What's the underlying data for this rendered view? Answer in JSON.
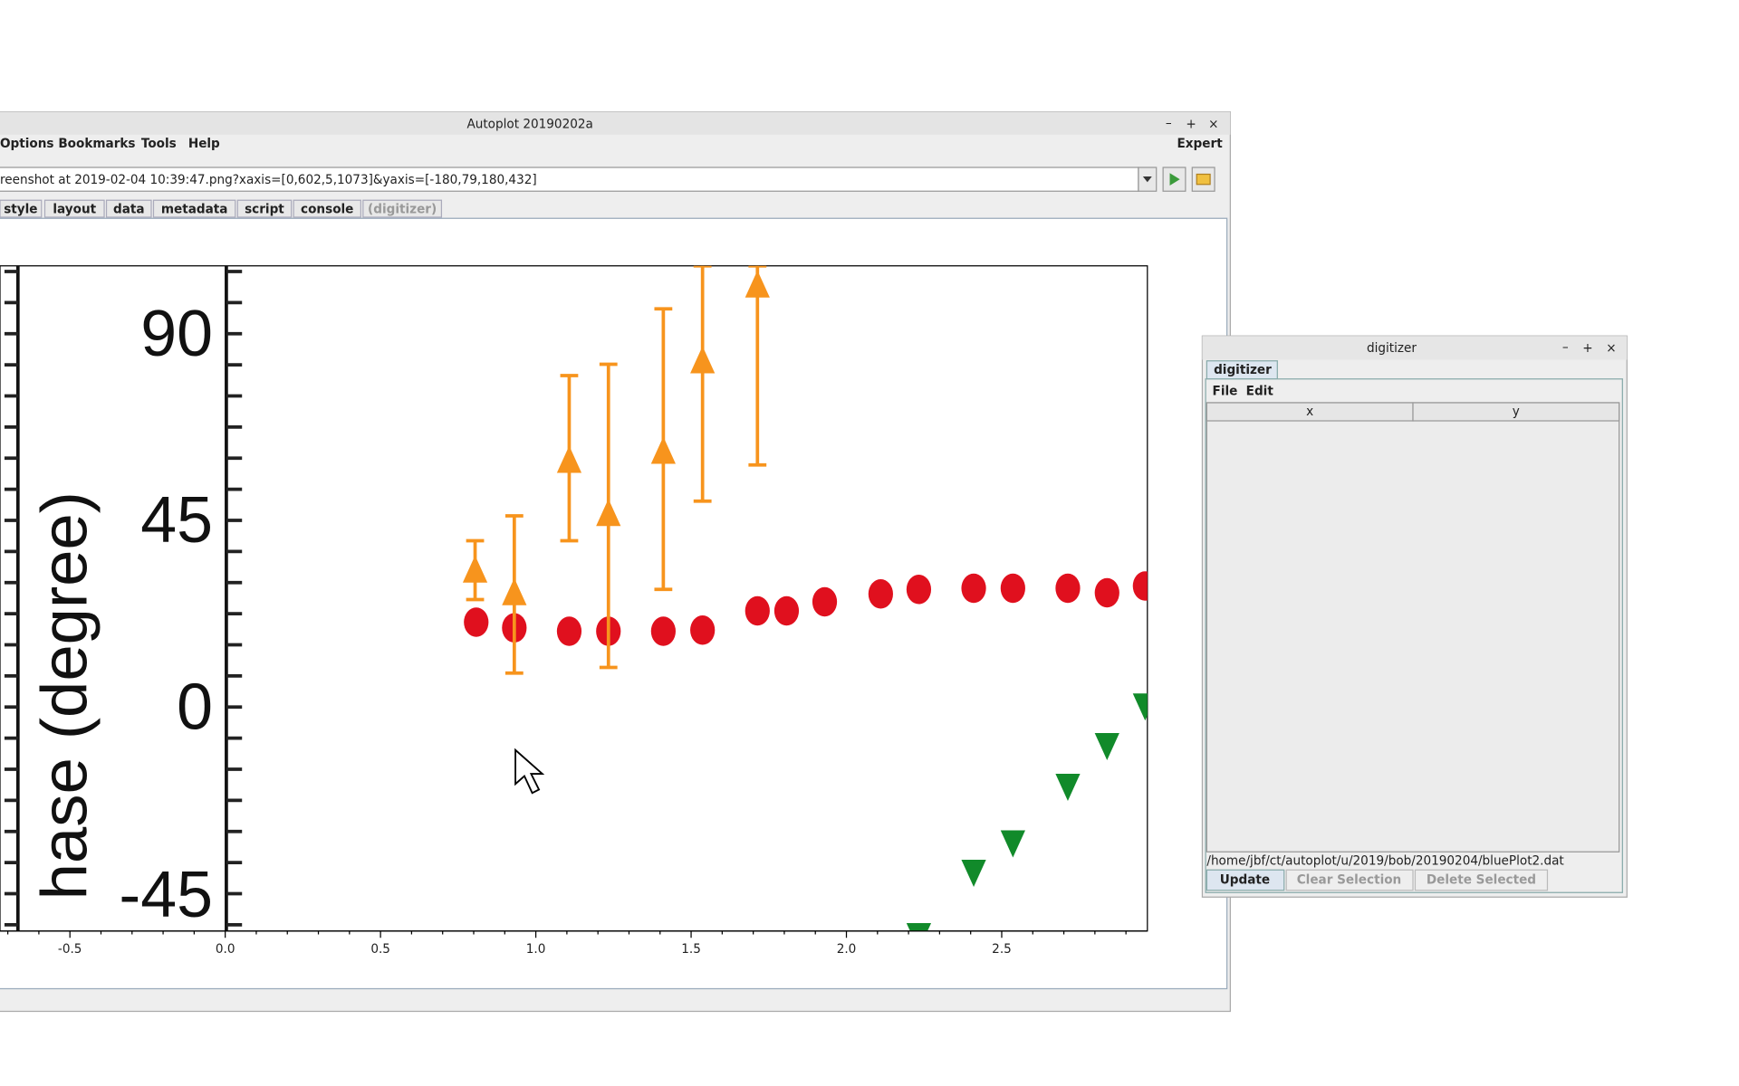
{
  "window": {
    "title": "Autoplot 20190202a",
    "menu": [
      "Options",
      "Bookmarks",
      "Tools",
      "Help"
    ],
    "expert": "Expert",
    "url": "reenshot at 2019-02-04 10:39:47.png?xaxis=[0,602,5,1073]&yaxis=[-180,79,180,432]",
    "tabs": [
      "style",
      "layout",
      "data",
      "metadata",
      "script",
      "console",
      "(digitizer)"
    ]
  },
  "plot": {
    "y_labels": [
      "90",
      "45",
      "0",
      "-45"
    ],
    "y_title": "hase (degree)",
    "x_ticks": [
      "-0.5",
      "0.0",
      "0.5",
      "1.0",
      "1.5",
      "2.0",
      "2.5"
    ]
  },
  "digitizer": {
    "title": "digitizer",
    "tab": "digitizer",
    "menu": [
      "File",
      "Edit"
    ],
    "columns": [
      "x",
      "y"
    ],
    "file": "/home/jbf/ct/autoplot/u/2019/bob/20190204/bluePlot2.dat",
    "buttons": [
      "Update",
      "Clear Selection",
      "Delete Selected"
    ]
  }
}
